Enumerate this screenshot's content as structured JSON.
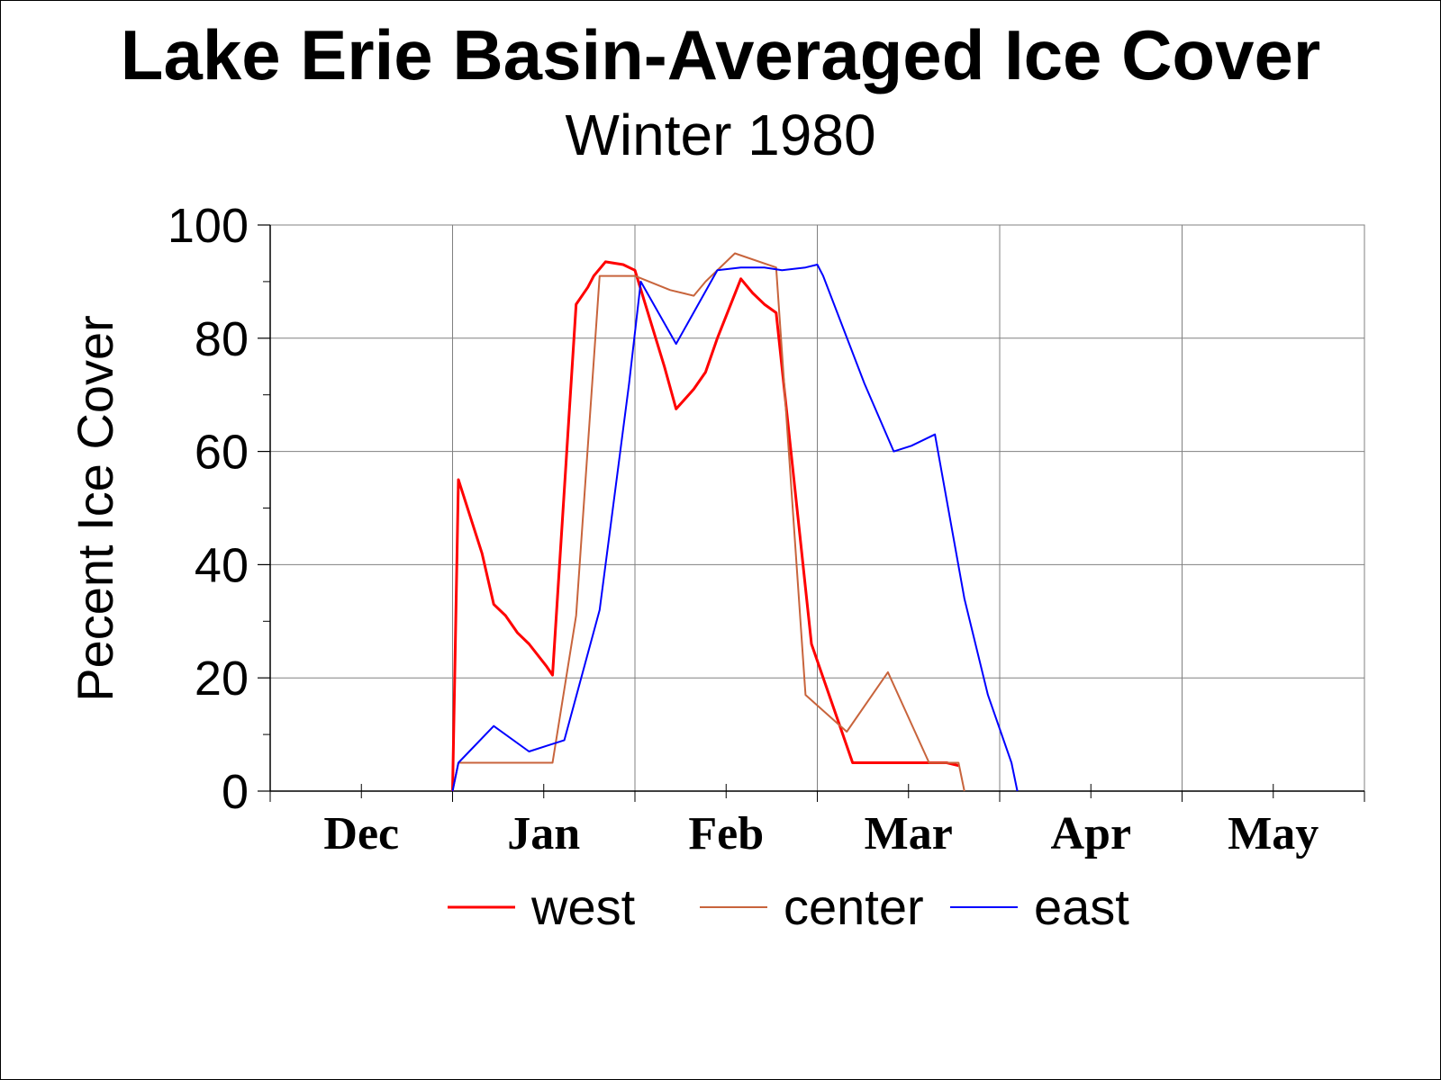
{
  "chart_data": {
    "type": "line",
    "title": "Lake Erie Basin-Averaged Ice Cover",
    "subtitle": "Winter 1980",
    "ylabel": "Pecent Ice Cover",
    "xlabel": "",
    "ylim": [
      0,
      100
    ],
    "y_ticks": [
      "0",
      "20",
      "40",
      "60",
      "80",
      "100"
    ],
    "x_domain": [
      0,
      186
    ],
    "x_unit": "days from start of Dec",
    "month_labels": [
      "Dec",
      "Jan",
      "Feb",
      "Mar",
      "Apr",
      "May"
    ],
    "grid": true,
    "legend_position": "bottom",
    "series": [
      {
        "name": "west",
        "color": "#ff0000",
        "points": [
          [
            31,
            0
          ],
          [
            32,
            55
          ],
          [
            36,
            42
          ],
          [
            38,
            33
          ],
          [
            40,
            31
          ],
          [
            42,
            28
          ],
          [
            44,
            26
          ],
          [
            47,
            22
          ],
          [
            48,
            20.5
          ],
          [
            52,
            86
          ],
          [
            54,
            89
          ],
          [
            55,
            91
          ],
          [
            57,
            93.5
          ],
          [
            60,
            93
          ],
          [
            62,
            92
          ],
          [
            67,
            75
          ],
          [
            69,
            67.5
          ],
          [
            72,
            71
          ],
          [
            74,
            74
          ],
          [
            76,
            80
          ],
          [
            80,
            90.5
          ],
          [
            82,
            88
          ],
          [
            84,
            86
          ],
          [
            86,
            84.5
          ],
          [
            92,
            26
          ],
          [
            99,
            5
          ],
          [
            115,
            5
          ],
          [
            117,
            4.5
          ]
        ]
      },
      {
        "name": "center",
        "color": "#c8643c",
        "points": [
          [
            31,
            0
          ],
          [
            32,
            5
          ],
          [
            48,
            5
          ],
          [
            52,
            31
          ],
          [
            56,
            91
          ],
          [
            62,
            91
          ],
          [
            68,
            88.5
          ],
          [
            72,
            87.5
          ],
          [
            74,
            90
          ],
          [
            79,
            95
          ],
          [
            86,
            92.5
          ],
          [
            91,
            17
          ],
          [
            98,
            10.5
          ],
          [
            105,
            21
          ],
          [
            112,
            5
          ],
          [
            117,
            5
          ],
          [
            118,
            0
          ]
        ]
      },
      {
        "name": "east",
        "color": "#0000ff",
        "points": [
          [
            31,
            0
          ],
          [
            32,
            5
          ],
          [
            38,
            11.5
          ],
          [
            44,
            7
          ],
          [
            47,
            8
          ],
          [
            50,
            9
          ],
          [
            56,
            32
          ],
          [
            58,
            48
          ],
          [
            61,
            72
          ],
          [
            63,
            90
          ],
          [
            69,
            79
          ],
          [
            76,
            92
          ],
          [
            80,
            92.5
          ],
          [
            84,
            92.5
          ],
          [
            87,
            92
          ],
          [
            91,
            92.5
          ],
          [
            93,
            93
          ],
          [
            94,
            91
          ],
          [
            101,
            72
          ],
          [
            106,
            60
          ],
          [
            109,
            61
          ],
          [
            113,
            63
          ],
          [
            118,
            34
          ],
          [
            122,
            17
          ],
          [
            126,
            5
          ],
          [
            127,
            0
          ]
        ]
      }
    ]
  }
}
